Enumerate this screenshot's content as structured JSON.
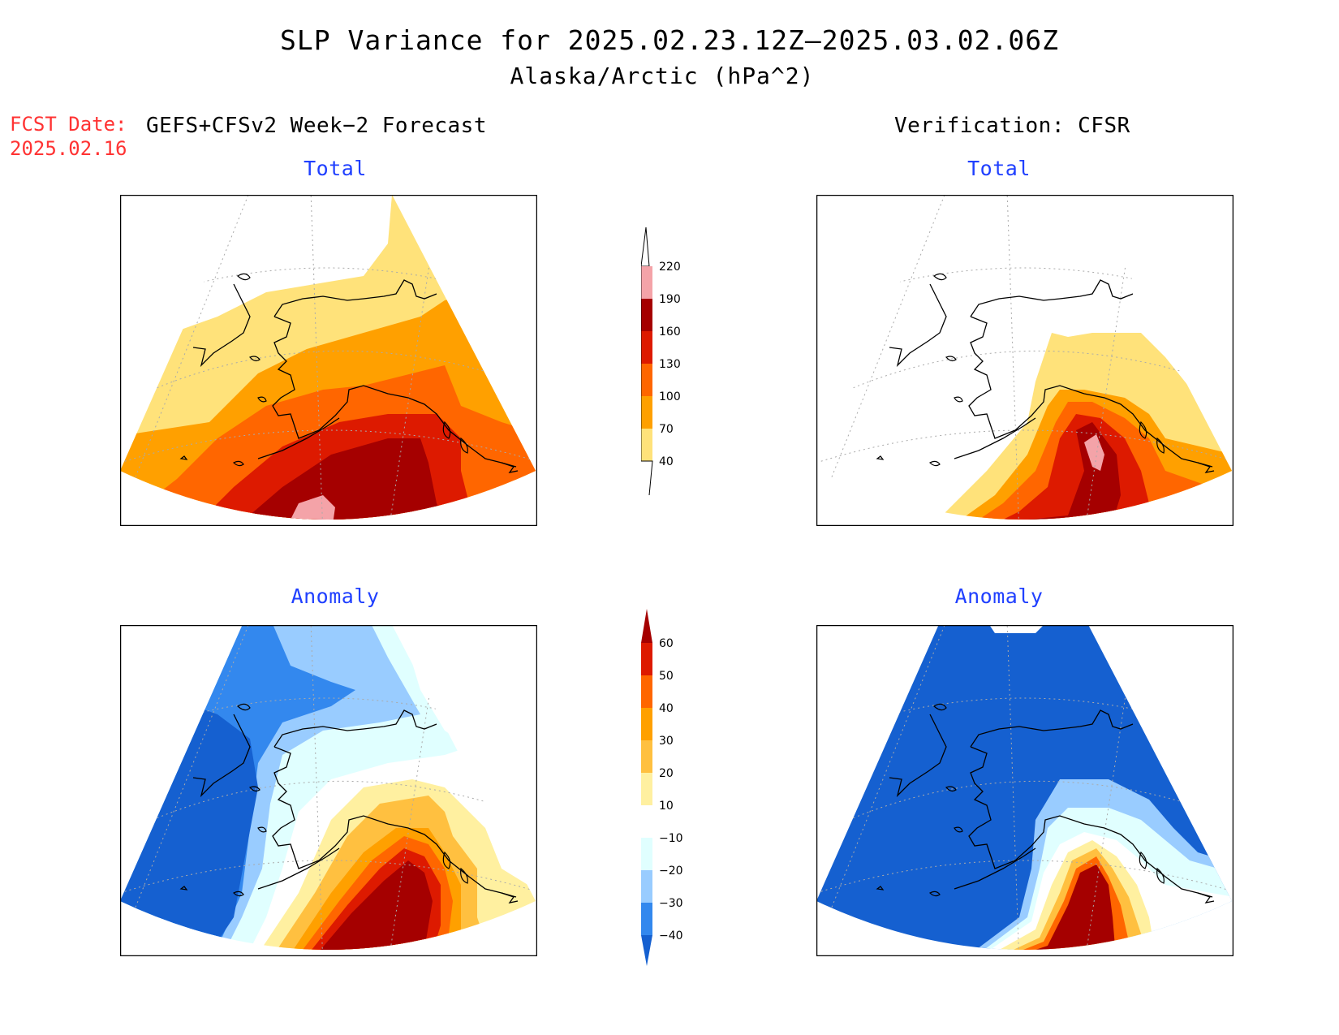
{
  "title": "SLP Variance for 2025.02.23.12Z—2025.03.02.06Z",
  "subtitle": "Alaska/Arctic (hPa^2)",
  "fcst_date_label": "FCST Date:",
  "fcst_date_value": "2025.02.16",
  "left_header": "GEFS+CFSv2 Week−2 Forecast",
  "right_header": "Verification: CFSR",
  "panels": {
    "forecast_total_title": "Total",
    "verification_total_title": "Total",
    "forecast_anomaly_title": "Anomaly",
    "verification_anomaly_title": "Anomaly"
  },
  "colorbars": {
    "total": {
      "labels": [
        "220",
        "190",
        "160",
        "130",
        "100",
        "70",
        "40"
      ],
      "colors": [
        "#ffffff",
        "#f4a3a8",
        "#a50000",
        "#dd1a00",
        "#ff6600",
        "#ffa000",
        "#ffe27a"
      ]
    },
    "anomaly": {
      "labels": [
        "60",
        "50",
        "40",
        "30",
        "20",
        "10",
        "−10",
        "−20",
        "−30",
        "−40"
      ],
      "colors": [
        "#a50000",
        "#dd1a00",
        "#ff6600",
        "#ffa000",
        "#ffc040",
        "#fff0a0",
        "#ffffff",
        "#e0ffff",
        "#99ccff",
        "#3388ee",
        "#1560d0"
      ]
    }
  }
}
